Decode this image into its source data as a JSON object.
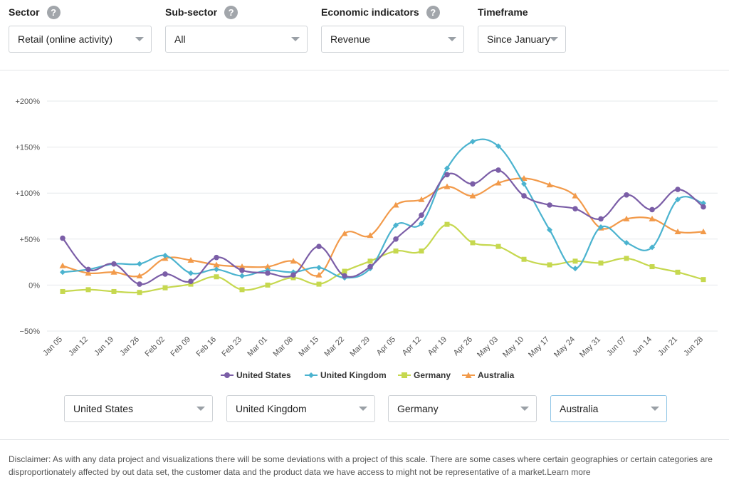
{
  "filters": {
    "sector": {
      "label": "Sector",
      "value": "Retail (online activity)"
    },
    "subsector": {
      "label": "Sub-sector",
      "value": "All"
    },
    "indicator": {
      "label": "Economic indicators",
      "value": "Revenue"
    },
    "timeframe": {
      "label": "Timeframe",
      "value": "Since January"
    },
    "help_glyph": "?"
  },
  "series_selects": [
    "United States",
    "United Kingdom",
    "Germany",
    "Australia"
  ],
  "disclaimer": {
    "text": "Disclaimer: As with any data project and visualizations there will be some deviations with a project of this scale. There are some cases where certain geographies or certain categories are disproportionately affected by out data set, the customer data and the product data we have access to might not be representative of a market.",
    "link": "Learn more"
  },
  "colors": {
    "us": "#7b5ea7",
    "uk": "#4bb3cf",
    "de": "#c6d84f",
    "au": "#f29a4a"
  },
  "chart_data": {
    "type": "line",
    "x": [
      "Jan 05",
      "Jan 12",
      "Jan 19",
      "Jan 26",
      "Feb 02",
      "Feb 09",
      "Feb 16",
      "Feb 23",
      "Mar 01",
      "Mar 08",
      "Mar 15",
      "Mar 22",
      "Mar 29",
      "Apr 05",
      "Apr 12",
      "Apr 19",
      "Apr 26",
      "May 03",
      "May 10",
      "May 17",
      "May 24",
      "May 31",
      "Jun 07",
      "Jun 14",
      "Jun 21",
      "Jun 28"
    ],
    "y_ticks": [
      "+200%",
      "+150%",
      "+100%",
      "+50%",
      "0%",
      "−50%"
    ],
    "ylim": [
      -50,
      200
    ],
    "grid": true,
    "legend_position": "bottom",
    "series": [
      {
        "name": "United States",
        "color_key": "us",
        "marker": "circle",
        "values": [
          51,
          17,
          23,
          1,
          12,
          4,
          30,
          16,
          13,
          11,
          42,
          10,
          20,
          50,
          76,
          120,
          110,
          125,
          97,
          87,
          83,
          72,
          98,
          82,
          104,
          85
        ]
      },
      {
        "name": "United Kingdom",
        "color_key": "uk",
        "marker": "diamond",
        "values": [
          14,
          17,
          23,
          23,
          32,
          13,
          17,
          10,
          16,
          14,
          19,
          8,
          18,
          65,
          67,
          127,
          156,
          151,
          110,
          60,
          18,
          63,
          46,
          41,
          93,
          89
        ]
      },
      {
        "name": "Germany",
        "color_key": "de",
        "marker": "square",
        "values": [
          -7,
          -5,
          -7,
          -8,
          -3,
          1,
          9,
          -5,
          0,
          8,
          1,
          15,
          26,
          37,
          37,
          66,
          46,
          42,
          28,
          22,
          26,
          24,
          29,
          20,
          14,
          6
        ]
      },
      {
        "name": "Australia",
        "color_key": "au",
        "marker": "triangle",
        "values": [
          21,
          13,
          14,
          10,
          29,
          27,
          22,
          20,
          20,
          26,
          11,
          56,
          54,
          87,
          93,
          107,
          97,
          111,
          116,
          109,
          97,
          62,
          72,
          72,
          58,
          58
        ]
      }
    ]
  }
}
